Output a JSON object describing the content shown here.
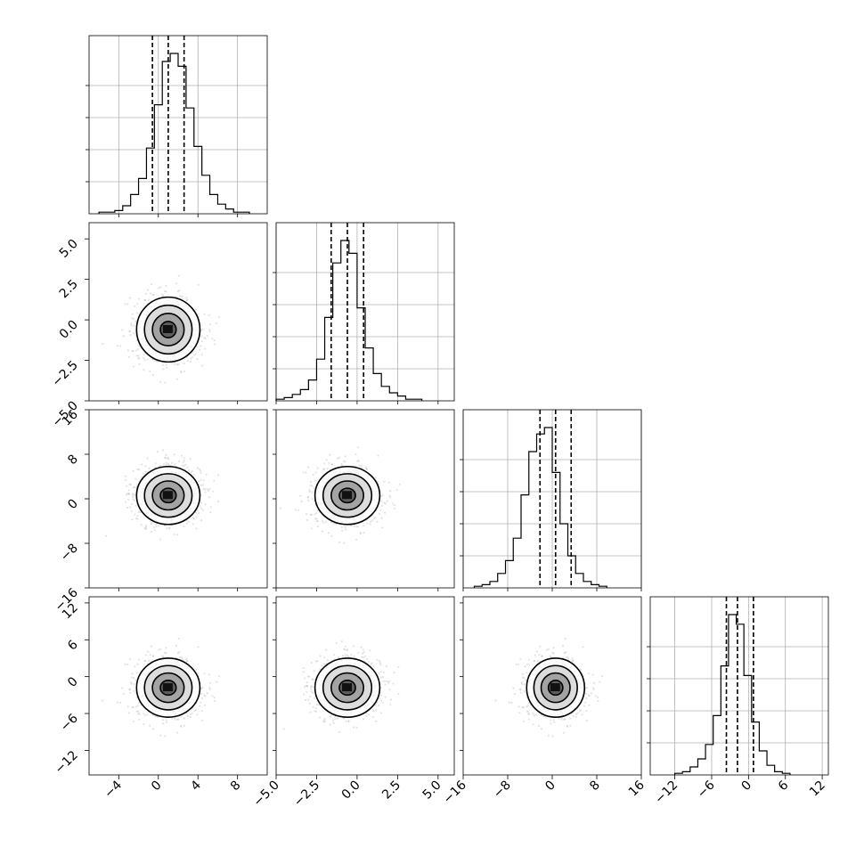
{
  "chart_data": {
    "type": "corner",
    "parameters": 4,
    "grid": true,
    "quantile_lines": "dashed",
    "axes": [
      {
        "range": [
          -7,
          11
        ],
        "ticks": [
          -4,
          0,
          4,
          8
        ],
        "tick_labels": [
          "−4",
          "0",
          "4",
          "8"
        ],
        "quantiles": [
          -0.6,
          1.0,
          2.6
        ]
      },
      {
        "range": [
          -5,
          6
        ],
        "ticks": [
          -5.0,
          -2.5,
          0.0,
          2.5,
          5.0
        ],
        "tick_labels": [
          "−5.0",
          "−2.5",
          "0.0",
          "2.5",
          "5.0"
        ],
        "quantiles": [
          -1.6,
          -0.6,
          0.4
        ]
      },
      {
        "range": [
          -16,
          16
        ],
        "ticks": [
          -16,
          -8,
          0,
          8,
          16
        ],
        "tick_labels": [
          "−16",
          "−8",
          "0",
          "8",
          "16"
        ],
        "quantiles": [
          -2.2,
          0.6,
          3.4
        ]
      },
      {
        "range": [
          -16,
          13
        ],
        "ticks": [
          -12,
          -6,
          0,
          6,
          12
        ],
        "tick_labels": [
          "−12",
          "−6",
          "0",
          "6",
          "12"
        ],
        "quantiles": [
          -3.6,
          -1.8,
          0.8
        ]
      }
    ],
    "histograms": [
      {
        "parameter": 1,
        "bin_start": -6.0,
        "bin_width": 0.8,
        "counts": [
          1,
          1,
          2,
          5,
          12,
          22,
          41,
          68,
          95,
          100,
          92,
          66,
          42,
          24,
          12,
          6,
          3,
          1,
          1
        ]
      },
      {
        "parameter": 2,
        "bin_start": -5.0,
        "bin_width": 0.5,
        "counts": [
          1,
          2,
          4,
          7,
          13,
          26,
          52,
          86,
          100,
          92,
          58,
          33,
          17,
          9,
          5,
          3,
          1,
          1
        ]
      },
      {
        "parameter": 3,
        "bin_start": -14.0,
        "bin_width": 1.4,
        "counts": [
          1,
          2,
          4,
          9,
          17,
          31,
          58,
          85,
          96,
          100,
          72,
          40,
          20,
          9,
          4,
          2,
          1
        ]
      },
      {
        "parameter": 4,
        "bin_start": -12.0,
        "bin_width": 1.25,
        "counts": [
          1,
          2,
          5,
          10,
          19,
          37,
          68,
          100,
          94,
          62,
          33,
          15,
          6,
          2,
          1
        ]
      }
    ],
    "joint": [
      {
        "x_param": 1,
        "y_param": 2,
        "center": [
          1.0,
          -0.6
        ],
        "sigma": [
          1.6,
          1.0
        ]
      },
      {
        "x_param": 1,
        "y_param": 3,
        "center": [
          1.0,
          0.6
        ],
        "sigma": [
          1.6,
          2.6
        ]
      },
      {
        "x_param": 2,
        "y_param": 3,
        "center": [
          -0.6,
          0.6
        ],
        "sigma": [
          1.0,
          2.6
        ]
      },
      {
        "x_param": 1,
        "y_param": 4,
        "center": [
          1.0,
          -1.8
        ],
        "sigma": [
          1.6,
          2.4
        ]
      },
      {
        "x_param": 2,
        "y_param": 4,
        "center": [
          -0.6,
          -1.8
        ],
        "sigma": [
          1.0,
          2.4
        ]
      },
      {
        "x_param": 3,
        "y_param": 4,
        "center": [
          0.6,
          -1.8
        ],
        "sigma": [
          2.6,
          2.4
        ]
      }
    ],
    "contour_levels_sigma": [
      0.5,
      1.0,
      1.5,
      2.0
    ]
  }
}
